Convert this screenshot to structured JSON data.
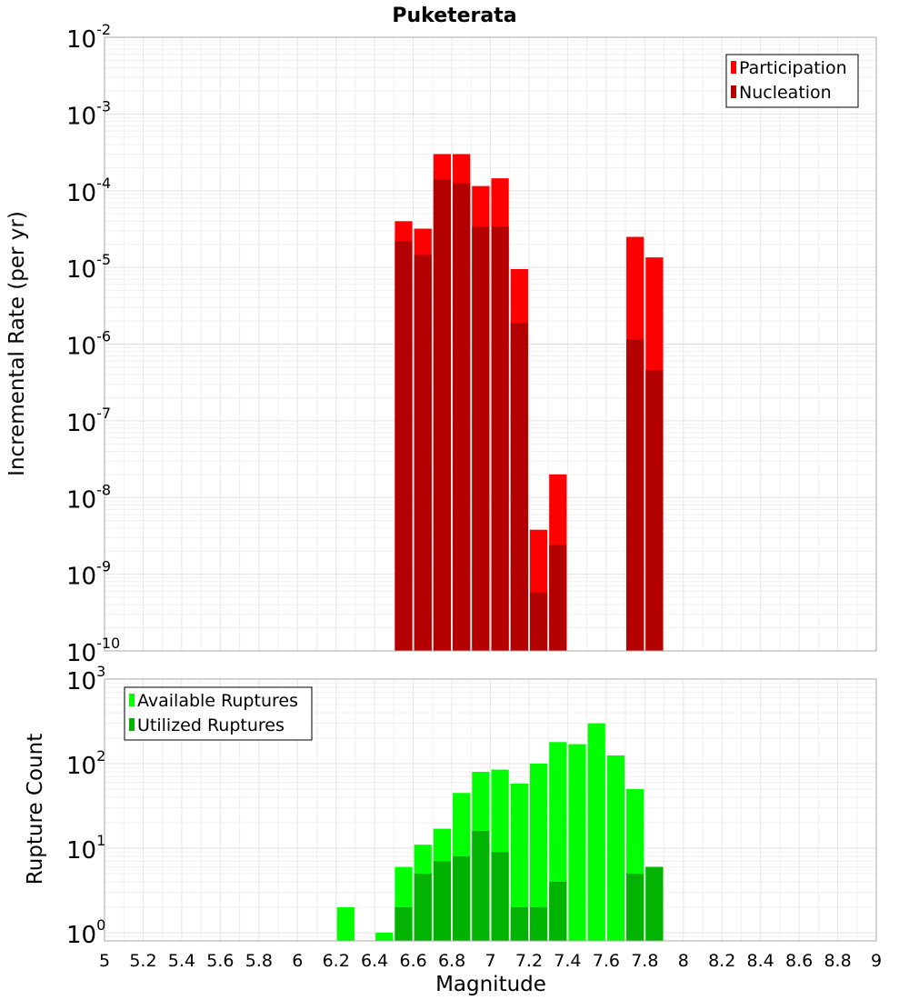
{
  "chart_data": [
    {
      "type": "bar",
      "title": "Puketerata",
      "xlabel": "",
      "ylabel": "Incremental Rate (per yr)",
      "yscale": "log",
      "ylim": [
        1e-10,
        0.01
      ],
      "xlim": [
        5,
        9
      ],
      "y_tick_exponents": [
        "-2",
        "-3",
        "-4",
        "-5",
        "-6",
        "-7",
        "-8",
        "-9",
        "-10"
      ],
      "legend": {
        "position": "top-right",
        "entries": [
          "Participation",
          "Nucleation"
        ]
      },
      "grid": true,
      "colors": {
        "Participation": "#ff0000",
        "Nucleation": "#b30000"
      },
      "x": [
        6.55,
        6.65,
        6.75,
        6.85,
        6.95,
        7.05,
        7.15,
        7.25,
        7.35,
        7.75,
        7.85
      ],
      "series": [
        {
          "name": "Participation",
          "values": [
            4e-05,
            3.2e-05,
            0.0003,
            0.0003,
            0.000115,
            0.000145,
            9.5e-06,
            3.8e-09,
            2e-08,
            2.5e-05,
            1.35e-05
          ]
        },
        {
          "name": "Nucleation",
          "values": [
            2.2e-05,
            1.45e-05,
            0.00014,
            0.000125,
            3.4e-05,
            3.4e-05,
            1.9e-06,
            5.8e-10,
            2.4e-09,
            1.15e-06,
            4.6e-07
          ]
        }
      ]
    },
    {
      "type": "bar",
      "xlabel": "Magnitude",
      "ylabel": "Rupture Count",
      "yscale": "log",
      "ylim": [
        0.8,
        1000
      ],
      "xlim": [
        5,
        9
      ],
      "x_ticks": [
        "5",
        "5.2",
        "5.4",
        "5.6",
        "5.8",
        "6",
        "6.2",
        "6.4",
        "6.6",
        "6.8",
        "7",
        "7.2",
        "7.4",
        "7.6",
        "7.8",
        "8",
        "8.2",
        "8.4",
        "8.6",
        "8.8",
        "9"
      ],
      "y_tick_exponents": [
        "3",
        "2",
        "1",
        "0"
      ],
      "legend": {
        "position": "top-left",
        "entries": [
          "Available Ruptures",
          "Utilized Ruptures"
        ]
      },
      "grid": true,
      "colors": {
        "Available Ruptures": "#00ff00",
        "Utilized Ruptures": "#00b300"
      },
      "x": [
        6.25,
        6.45,
        6.55,
        6.65,
        6.75,
        6.85,
        6.95,
        7.05,
        7.15,
        7.25,
        7.35,
        7.45,
        7.55,
        7.65,
        7.75,
        7.85
      ],
      "series": [
        {
          "name": "Available Ruptures",
          "values": [
            2,
            1,
            6,
            11,
            17,
            45,
            80,
            85,
            58,
            100,
            180,
            170,
            300,
            125,
            50,
            6
          ]
        },
        {
          "name": "Utilized Ruptures",
          "values": [
            0,
            0,
            2,
            5,
            7,
            8,
            16,
            9,
            2,
            2,
            4,
            0,
            0,
            0,
            5,
            6
          ]
        }
      ]
    }
  ]
}
